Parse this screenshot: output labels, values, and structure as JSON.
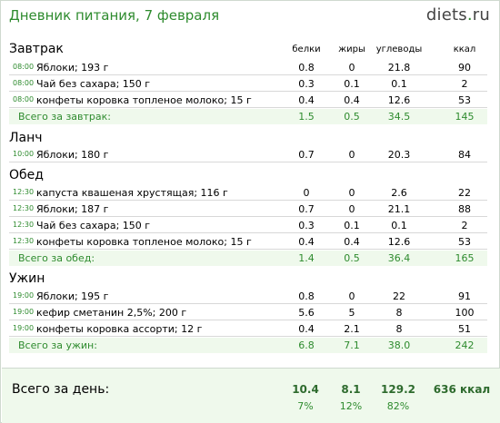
{
  "header": {
    "title": "Дневник питания, 7 февраля",
    "brand_name": "diets",
    "brand_dot": ".",
    "brand_tld": "ru"
  },
  "columns": {
    "protein": "белки",
    "fat": "жиры",
    "carbs": "углеводы",
    "kcal": "ккал"
  },
  "meals": [
    {
      "title": "Завтрак",
      "items": [
        {
          "time": "08:00",
          "food": "Яблоки; 193 г",
          "protein": "0.8",
          "fat": "0",
          "carbs": "21.8",
          "kcal": "90"
        },
        {
          "time": "08:00",
          "food": "Чай без сахара; 150 г",
          "protein": "0.3",
          "fat": "0.1",
          "carbs": "0.1",
          "kcal": "2"
        },
        {
          "time": "08:00",
          "food": "конфеты коровка топленое молоко; 15 г",
          "protein": "0.4",
          "fat": "0.4",
          "carbs": "12.6",
          "kcal": "53"
        }
      ],
      "total": {
        "label": "Всего за завтрак:",
        "protein": "1.5",
        "fat": "0.5",
        "carbs": "34.5",
        "kcal": "145"
      }
    },
    {
      "title": "Ланч",
      "items": [
        {
          "time": "10:00",
          "food": "Яблоки; 180 г",
          "protein": "0.7",
          "fat": "0",
          "carbs": "20.3",
          "kcal": "84"
        }
      ]
    },
    {
      "title": "Обед",
      "items": [
        {
          "time": "12:30",
          "food": "капуста квашеная хрустящая; 116 г",
          "protein": "0",
          "fat": "0",
          "carbs": "2.6",
          "kcal": "22"
        },
        {
          "time": "12:30",
          "food": "Яблоки; 187 г",
          "protein": "0.7",
          "fat": "0",
          "carbs": "21.1",
          "kcal": "88"
        },
        {
          "time": "12:30",
          "food": "Чай без сахара; 150 г",
          "protein": "0.3",
          "fat": "0.1",
          "carbs": "0.1",
          "kcal": "2"
        },
        {
          "time": "12:30",
          "food": "конфеты коровка топленое молоко; 15 г",
          "protein": "0.4",
          "fat": "0.4",
          "carbs": "12.6",
          "kcal": "53"
        }
      ],
      "total": {
        "label": "Всего за обед:",
        "protein": "1.4",
        "fat": "0.5",
        "carbs": "36.4",
        "kcal": "165"
      }
    },
    {
      "title": "Ужин",
      "items": [
        {
          "time": "19:00",
          "food": "Яблоки; 195 г",
          "protein": "0.8",
          "fat": "0",
          "carbs": "22",
          "kcal": "91"
        },
        {
          "time": "19:00",
          "food": "кефир сметанин 2,5%; 200 г",
          "protein": "5.6",
          "fat": "5",
          "carbs": "8",
          "kcal": "100"
        },
        {
          "time": "19:00",
          "food": "конфеты коровка ассорти; 12 г",
          "protein": "0.4",
          "fat": "2.1",
          "carbs": "8",
          "kcal": "51"
        }
      ],
      "total": {
        "label": "Всего за ужин:",
        "protein": "6.8",
        "fat": "7.1",
        "carbs": "38.0",
        "kcal": "242"
      }
    }
  ],
  "day_total": {
    "label": "Всего за день:",
    "protein": "10.4",
    "fat": "8.1",
    "carbs": "129.2",
    "kcal": "636 ккал",
    "protein_pct": "7%",
    "fat_pct": "12%",
    "carbs_pct": "82%"
  },
  "colors": {
    "accent_green": "#2e8b2e",
    "total_bg": "#eff9ec"
  }
}
